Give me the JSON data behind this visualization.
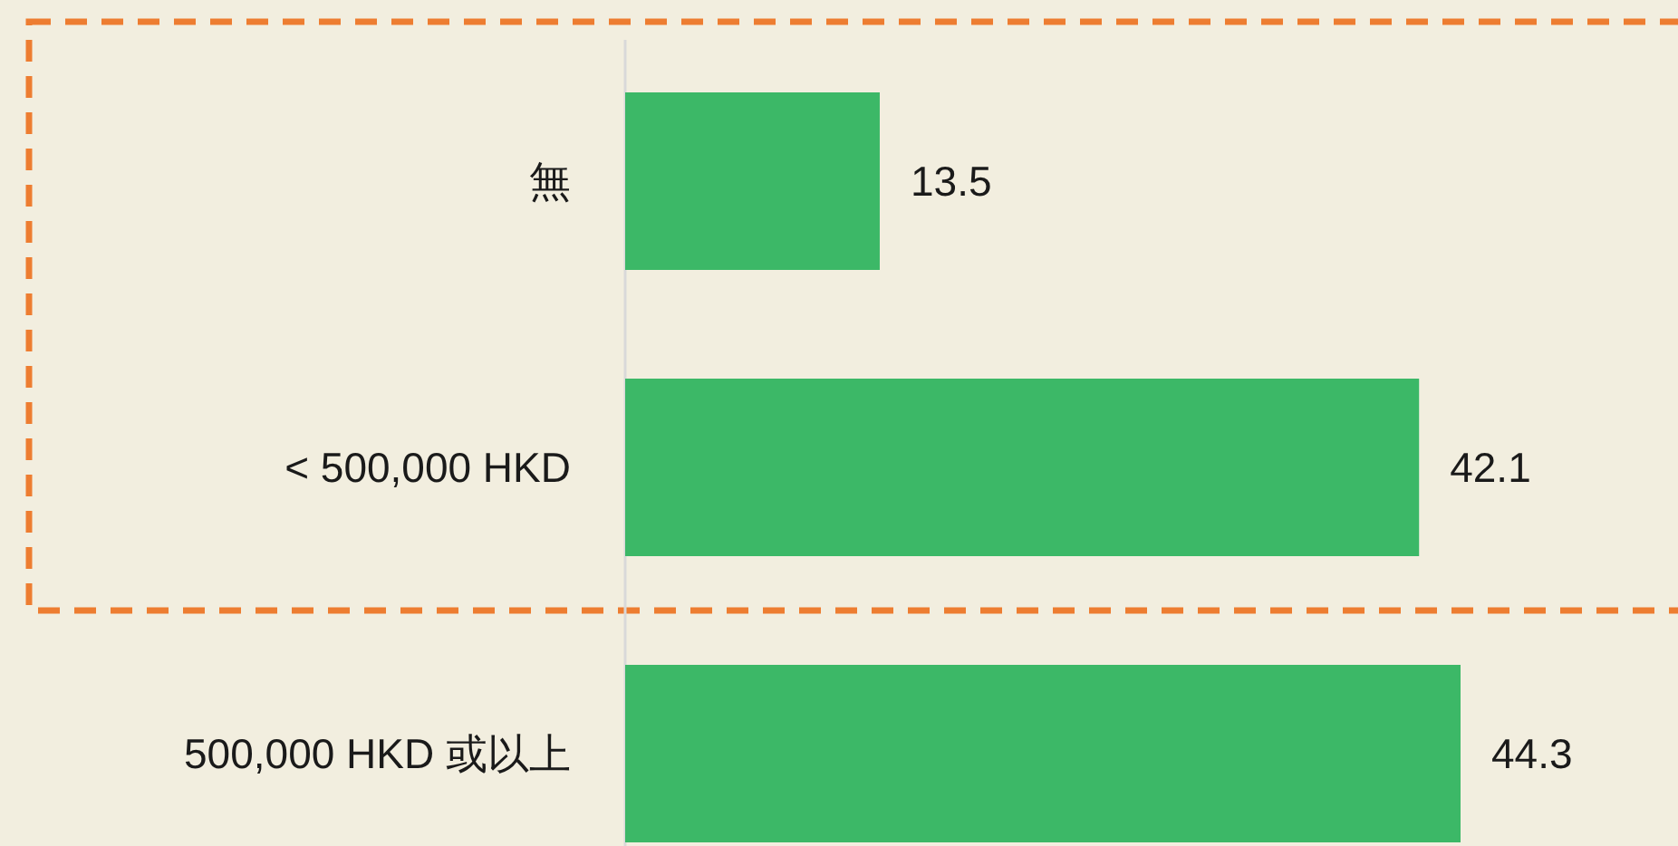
{
  "chart_data": {
    "type": "bar",
    "orientation": "horizontal",
    "categories": [
      "無",
      "< 500,000 HKD",
      "500,000 HKD 或以上"
    ],
    "values": [
      13.5,
      42.1,
      44.3
    ],
    "color": "#3cb867",
    "data_labels": true
  }
}
